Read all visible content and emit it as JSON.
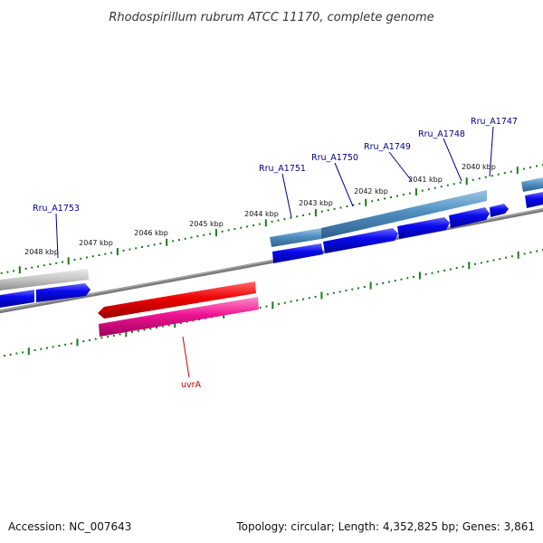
{
  "title": "Rhodospirillum rubrum ATCC 11170, complete genome",
  "footer": {
    "accession": "Accession: NC_007643",
    "summary": "Topology: circular; Length: 4,352,825 bp; Genes: 3,861"
  },
  "ticks": [
    "2040 kbp",
    "2041 kbp",
    "2042 kbp",
    "2043 kbp",
    "2044 kbp",
    "2045 kbp",
    "2046 kbp",
    "2047 kbp",
    "2048 kbp"
  ],
  "genes": [
    {
      "label": "Rru_A1747",
      "color": "#00008b"
    },
    {
      "label": "Rru_A1748",
      "color": "#00008b"
    },
    {
      "label": "Rru_A1749",
      "color": "#00008b"
    },
    {
      "label": "Rru_A1750",
      "color": "#00008b"
    },
    {
      "label": "Rru_A1751",
      "color": "#00008b"
    },
    {
      "label": "Rru_A1753",
      "color": "#00008b"
    },
    {
      "label": "uvrA",
      "color": "#cc0000"
    }
  ],
  "colors": {
    "backbone": "#808080",
    "tick": "#1a7a1a",
    "cds_blue": "#0000ee",
    "gene_steelblue": "#4682b4",
    "gene_grey": "#bdbdbd",
    "gene_red": "#ee0000",
    "cds_pink": "#ee1493"
  }
}
